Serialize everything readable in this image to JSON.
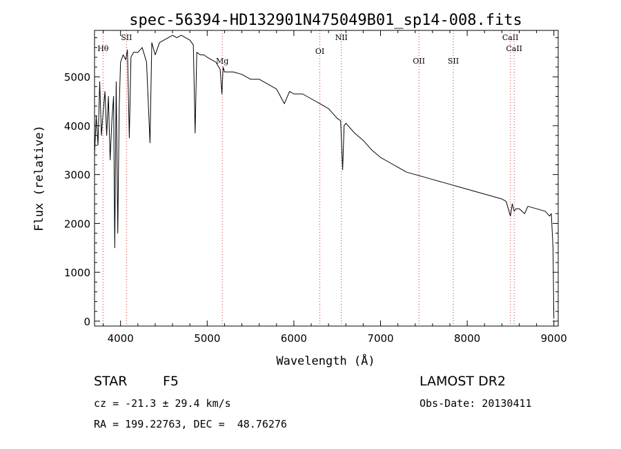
{
  "chart_data": {
    "type": "line",
    "title": "spec-56394-HD132901N475049B01_sp14-008.fits",
    "xlabel": "Wavelength (Å)",
    "ylabel": "Flux (relative)",
    "xlim": [
      3700,
      9050
    ],
    "ylim": [
      -100,
      5950
    ],
    "xticks": [
      4000,
      5000,
      6000,
      7000,
      8000,
      9000
    ],
    "yticks": [
      0,
      1000,
      2000,
      3000,
      4000,
      5000
    ],
    "grid": false,
    "series": [
      {
        "x": [
          3700,
          3720,
          3740,
          3760,
          3780,
          3800,
          3820,
          3840,
          3860,
          3880,
          3900,
          3920,
          3933,
          3950,
          3968,
          3985,
          4000,
          4030,
          4060,
          4080,
          4101,
          4120,
          4150,
          4200,
          4250,
          4300,
          4340,
          4361,
          4400,
          4450,
          4500,
          4550,
          4600,
          4650,
          4700,
          4750,
          4800,
          4840,
          4861,
          4880,
          4920,
          4960,
          5000,
          5050,
          5100,
          5150,
          5170,
          5184,
          5200,
          5300,
          5400,
          5500,
          5600,
          5700,
          5800,
          5890,
          5950,
          6000,
          6100,
          6200,
          6300,
          6400,
          6450,
          6500,
          6540,
          6563,
          6580,
          6600,
          6700,
          6800,
          6900,
          7000,
          7100,
          7200,
          7300,
          7400,
          7500,
          7600,
          7700,
          7800,
          7900,
          8000,
          8100,
          8200,
          8300,
          8400,
          8450,
          8498,
          8520,
          8542,
          8560,
          8600,
          8662,
          8700,
          8800,
          8900,
          8950,
          8970,
          8990,
          9000
        ],
        "y": [
          3400,
          4200,
          3600,
          4900,
          3800,
          4300,
          4700,
          3800,
          4600,
          3300,
          4100,
          4600,
          1500,
          4900,
          1800,
          4400,
          5300,
          5450,
          5350,
          5550,
          3750,
          5400,
          5500,
          5500,
          5600,
          5300,
          3650,
          5700,
          5450,
          5700,
          5750,
          5800,
          5850,
          5800,
          5850,
          5800,
          5750,
          5650,
          3850,
          5500,
          5450,
          5450,
          5400,
          5350,
          5300,
          5150,
          4650,
          5200,
          5100,
          5100,
          5050,
          4950,
          4950,
          4850,
          4750,
          4450,
          4700,
          4650,
          4650,
          4550,
          4450,
          4350,
          4250,
          4150,
          4100,
          3100,
          4000,
          4050,
          3850,
          3700,
          3500,
          3350,
          3250,
          3150,
          3050,
          3000,
          2950,
          2900,
          2850,
          2800,
          2750,
          2700,
          2650,
          2600,
          2550,
          2500,
          2450,
          2150,
          2400,
          2250,
          2300,
          2300,
          2200,
          2350,
          2300,
          2250,
          2150,
          2200,
          1500,
          50
        ]
      }
    ],
    "line_markers": [
      {
        "label": "Hθ",
        "x": 3798
      },
      {
        "label": "SII",
        "x": 4069
      },
      {
        "label": "Mg",
        "x": 5174
      },
      {
        "label": "OI",
        "x": 6300
      },
      {
        "label": "NII",
        "x": 6548
      },
      {
        "label": "OII",
        "x": 7443
      },
      {
        "label": "SII",
        "x": 7840
      },
      {
        "label": "CaII",
        "x": 8498
      },
      {
        "label": "CaII",
        "x": 8542
      }
    ]
  },
  "footer": {
    "object_class": "STAR",
    "subclass": "F5",
    "redshift": "cz = -21.3 ± 29.4 km/s",
    "coords": "RA = 199.22763, DEC =  48.76276",
    "survey": "LAMOST DR2",
    "obs_date": "Obs-Date: 20130411"
  }
}
